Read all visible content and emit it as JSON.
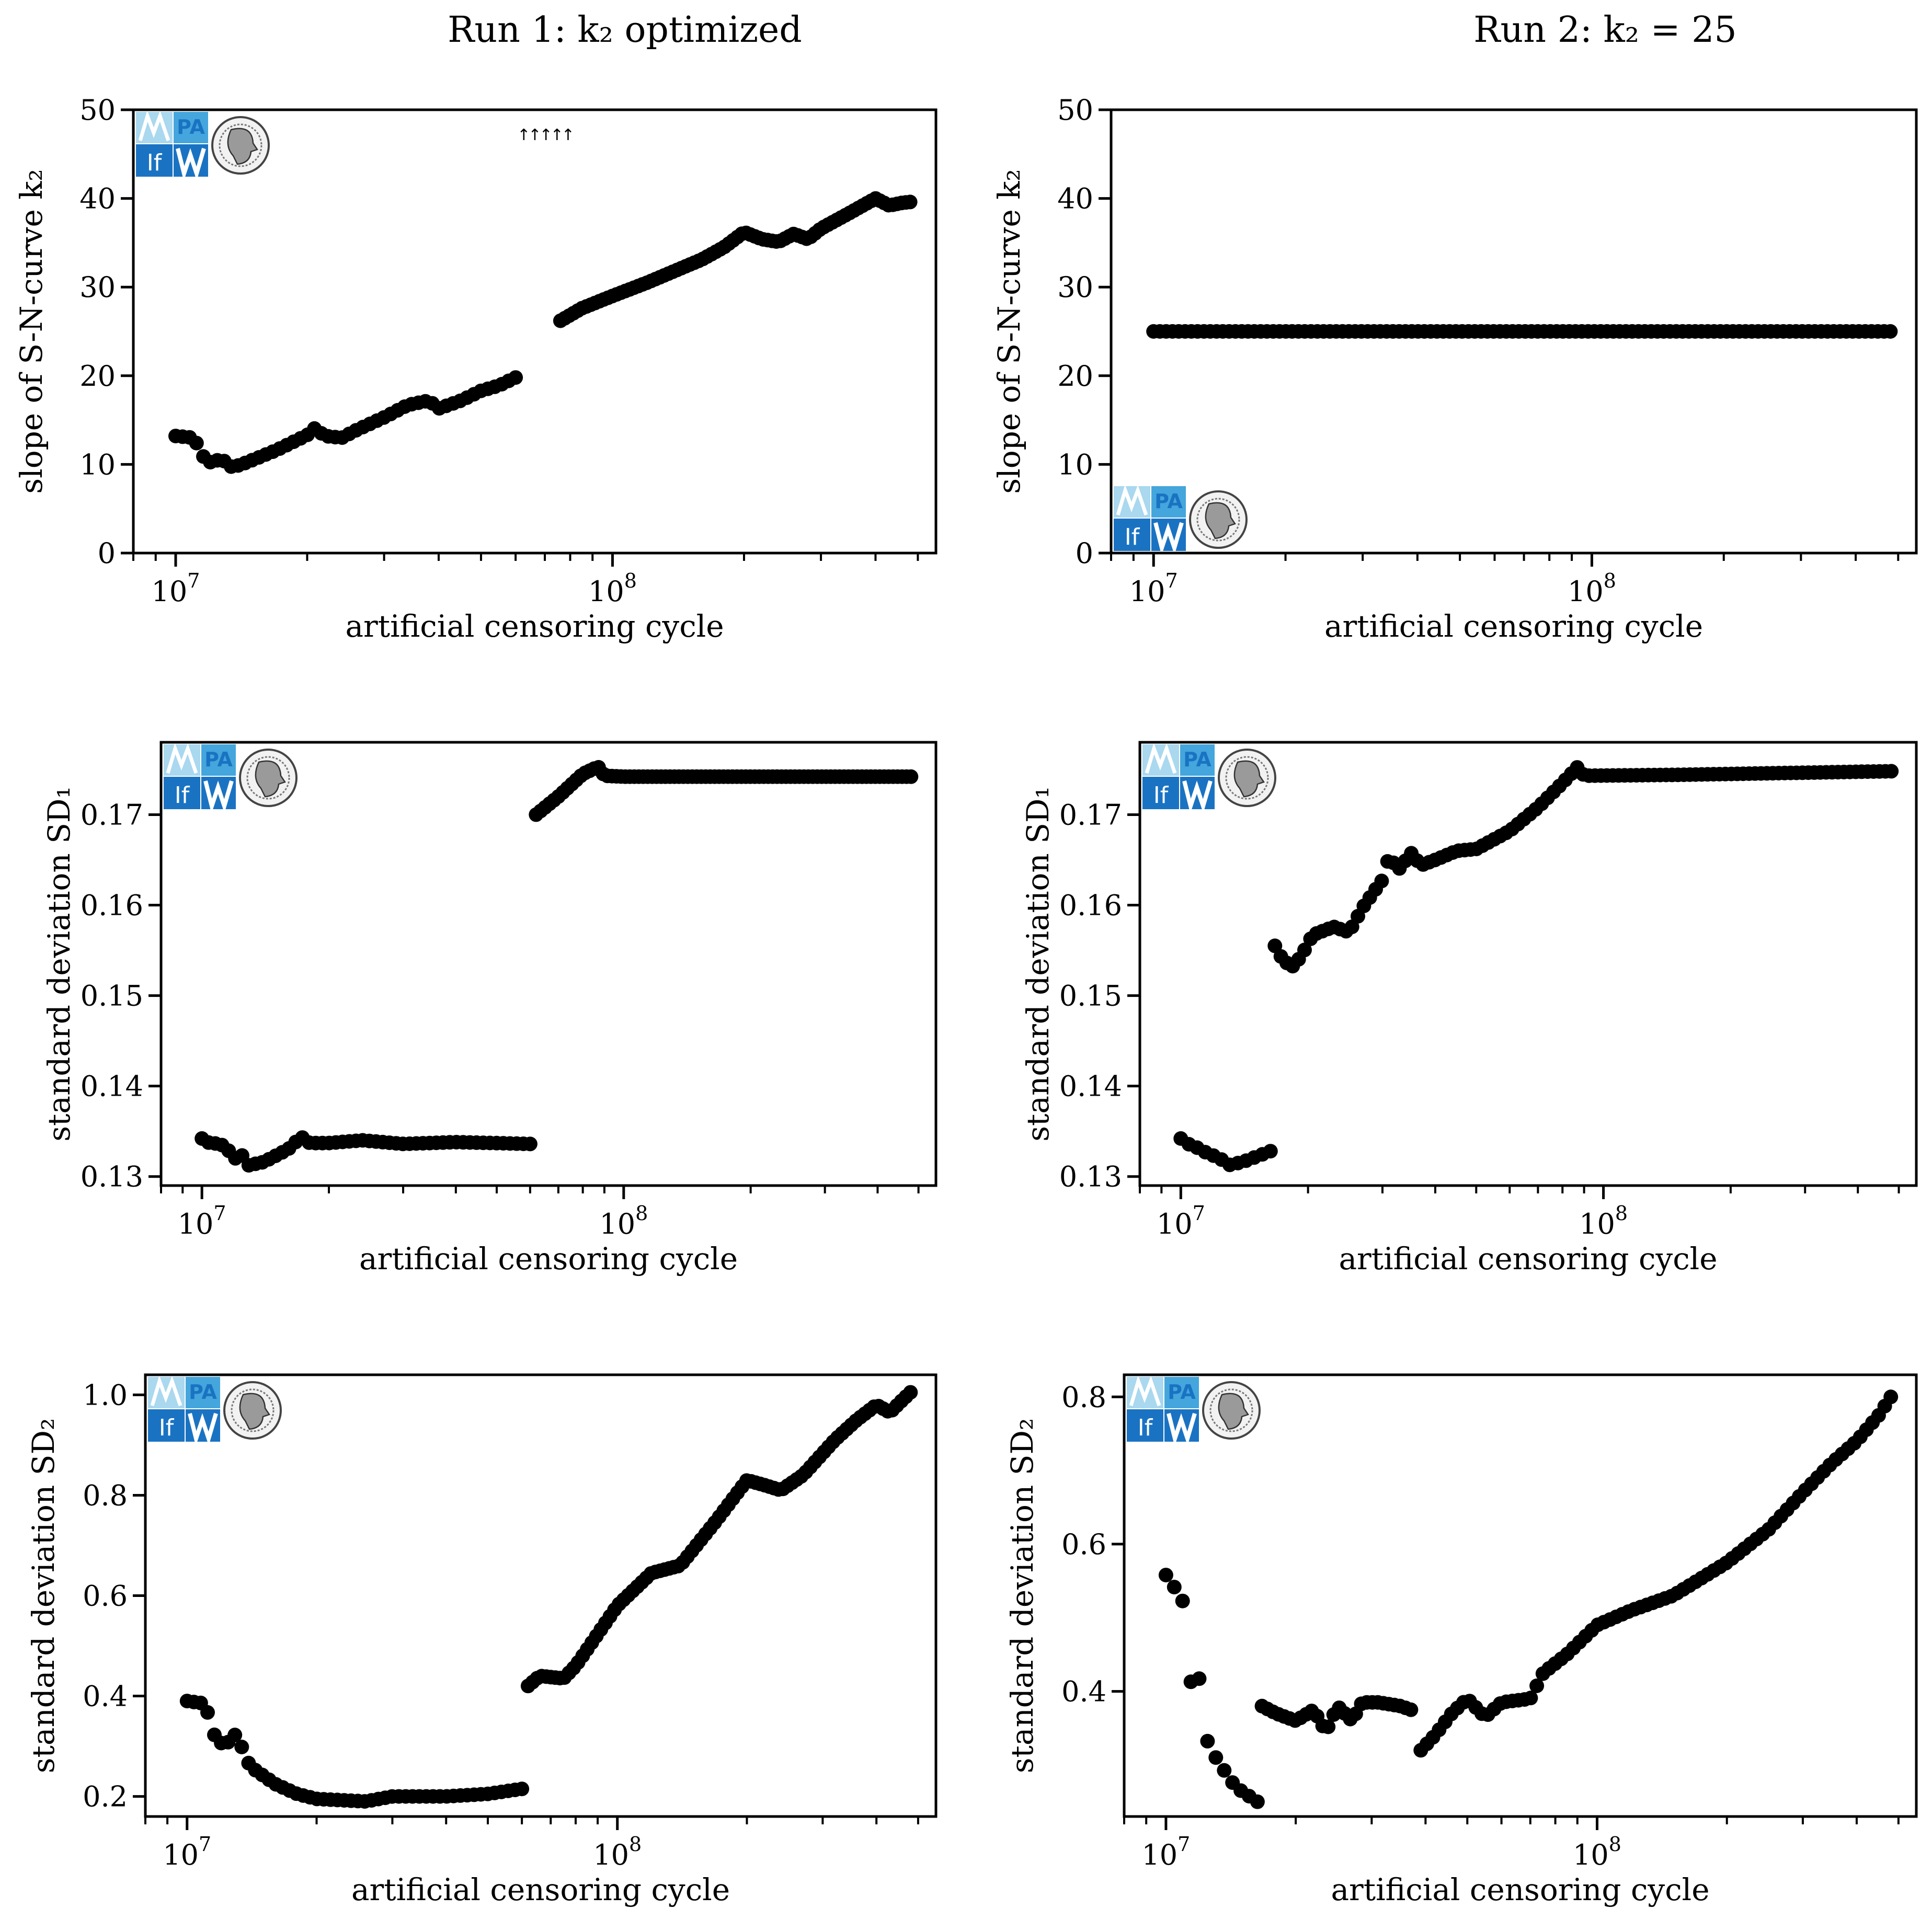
{
  "column_titles": [
    "Run 1: k₂ optimized",
    "Run 2: k₂ = 25"
  ],
  "logo": {
    "left_text": "If",
    "right_text": "PA",
    "emblem": "university-seal"
  },
  "colors": {
    "marker": "#000000",
    "axes": "#000000",
    "logo_light": "#a9d8ef",
    "logo_mid": "#44a6dc",
    "logo_dark": "#1a73c2"
  },
  "chart_data": [
    {
      "type": "scatter",
      "row": 0,
      "col": 0,
      "title": "Run 1: k₂ optimized",
      "xlabel": "artificial censoring cycle",
      "ylabel": "slope of S-N-curve k₂",
      "xscale": "log",
      "xlim": [
        8000000,
        550000000
      ],
      "ylim": [
        0,
        50
      ],
      "yticks": [
        0,
        10,
        20,
        30,
        40,
        50
      ],
      "yticklabels": [
        "0",
        "10",
        "20",
        "30",
        "40",
        "50"
      ],
      "xticks": [
        10000000,
        100000000
      ],
      "xticklabels": [
        "10^7",
        "10^8"
      ],
      "annotations": [
        "↑↑↑↑↑"
      ],
      "logo_position": "top-left",
      "segments": [
        {
          "x_start": 10000000,
          "x_end": 60000000,
          "n": 50,
          "knots": [
            [
              10000000.0,
              13.2
            ],
            [
              10500000.0,
              13.1
            ],
            [
              11000000.0,
              13.0
            ],
            [
              11600000.0,
              10.8
            ],
            [
              12200000.0,
              10.0
            ],
            [
              12700000.0,
              10.9
            ],
            [
              13200000.0,
              9.7
            ],
            [
              14000000.0,
              9.9
            ],
            [
              15000000.0,
              10.5
            ],
            [
              17000000.0,
              11.6
            ],
            [
              20000000.0,
              13.3
            ],
            [
              20700000.0,
              14.1
            ],
            [
              22000000.0,
              13.2
            ],
            [
              24000000.0,
              13.0
            ],
            [
              26000000.0,
              13.9
            ],
            [
              30000000.0,
              15.3
            ],
            [
              34000000.0,
              16.7
            ],
            [
              38000000.0,
              17.2
            ],
            [
              40000000.0,
              16.3
            ],
            [
              45000000.0,
              17.2
            ],
            [
              50000000.0,
              18.3
            ],
            [
              55000000.0,
              18.9
            ],
            [
              60000000.0,
              19.8
            ]
          ]
        },
        {
          "x_start": 76000000,
          "x_end": 480000000,
          "n": 82,
          "knots": [
            [
              76000000.0,
              26.2
            ],
            [
              85000000.0,
              27.6
            ],
            [
              100000000.0,
              29.0
            ],
            [
              120000000.0,
              30.5
            ],
            [
              140000000.0,
              31.9
            ],
            [
              160000000.0,
              33.1
            ],
            [
              180000000.0,
              34.5
            ],
            [
              200000000.0,
              36.2
            ],
            [
              220000000.0,
              35.4
            ],
            [
              240000000.0,
              35.1
            ],
            [
              260000000.0,
              36.0
            ],
            [
              280000000.0,
              35.4
            ],
            [
              300000000.0,
              36.6
            ],
            [
              350000000.0,
              38.4
            ],
            [
              400000000.0,
              40.0
            ],
            [
              430000000.0,
              39.2
            ],
            [
              460000000.0,
              39.5
            ],
            [
              480000000.0,
              39.6
            ]
          ]
        }
      ]
    },
    {
      "type": "scatter",
      "row": 0,
      "col": 1,
      "title": "Run 2: k₂ = 25",
      "xlabel": "artificial censoring cycle",
      "ylabel": "slope of S-N-curve k₂",
      "xscale": "log",
      "xlim": [
        8000000,
        550000000
      ],
      "ylim": [
        0,
        50
      ],
      "yticks": [
        0,
        10,
        20,
        30,
        40,
        50
      ],
      "yticklabels": [
        "0",
        "10",
        "20",
        "30",
        "40",
        "50"
      ],
      "xticks": [
        10000000,
        100000000
      ],
      "xticklabels": [
        "10^7",
        "10^8"
      ],
      "logo_position": "bottom-left",
      "segments": [
        {
          "x_start": 10000000,
          "x_end": 480000000,
          "n": 118,
          "knots": [
            [
              10000000.0,
              25.0
            ],
            [
              480000000.0,
              25.0
            ]
          ]
        }
      ]
    },
    {
      "type": "scatter",
      "row": 1,
      "col": 0,
      "xlabel": "artificial censoring cycle",
      "ylabel": "standard deviation SD₁",
      "xscale": "log",
      "xlim": [
        8000000,
        550000000
      ],
      "ylim": [
        0.129,
        0.178
      ],
      "yticks": [
        0.13,
        0.14,
        0.15,
        0.16,
        0.17
      ],
      "yticklabels": [
        "0.13",
        "0.14",
        "0.15",
        "0.16",
        "0.17"
      ],
      "xticks": [
        10000000,
        100000000
      ],
      "xticklabels": [
        "10^7",
        "10^8"
      ],
      "logo_position": "top-left",
      "segments": [
        {
          "x_start": 10000000,
          "x_end": 60000000,
          "n": 50,
          "knots": [
            [
              10000000.0,
              0.1342
            ],
            [
              10500000.0,
              0.1336
            ],
            [
              11000000.0,
              0.1337
            ],
            [
              11500000.0,
              0.133
            ],
            [
              12000000.0,
              0.132
            ],
            [
              12400000.0,
              0.1325
            ],
            [
              12800000.0,
              0.1312
            ],
            [
              14000000.0,
              0.1316
            ],
            [
              16000000.0,
              0.133
            ],
            [
              17200000.0,
              0.1344
            ],
            [
              18000000.0,
              0.1337
            ],
            [
              20000000.0,
              0.1337
            ],
            [
              24000000.0,
              0.134
            ],
            [
              30000000.0,
              0.1336
            ],
            [
              40000000.0,
              0.1338
            ],
            [
              60000000.0,
              0.1336
            ]
          ]
        },
        {
          "x_start": 62000000,
          "x_end": 480000000,
          "n": 85,
          "knots": [
            [
              62000000.0,
              0.17
            ],
            [
              70000000.0,
              0.172
            ],
            [
              80000000.0,
              0.1745
            ],
            [
              87000000.0,
              0.1753
            ],
            [
              90000000.0,
              0.1743
            ],
            [
              100000000.0,
              0.1742
            ],
            [
              480000000.0,
              0.1742
            ]
          ]
        }
      ]
    },
    {
      "type": "scatter",
      "row": 1,
      "col": 1,
      "xlabel": "artificial censoring cycle",
      "ylabel": "standard deviation SD₁",
      "xscale": "log",
      "xlim": [
        8000000,
        550000000
      ],
      "ylim": [
        0.129,
        0.178
      ],
      "yticks": [
        0.13,
        0.14,
        0.15,
        0.16,
        0.17
      ],
      "yticklabels": [
        "0.13",
        "0.14",
        "0.15",
        "0.16",
        "0.17"
      ],
      "xticks": [
        10000000,
        100000000
      ],
      "xticklabels": [
        "10^7",
        "10^8"
      ],
      "logo_position": "top-left",
      "segments": [
        {
          "x_start": 10000000,
          "x_end": 16300000,
          "n": 12,
          "knots": [
            [
              10000000.0,
              0.1342
            ],
            [
              10500000.0,
              0.1335
            ],
            [
              11200000.0,
              0.133
            ],
            [
              11800000.0,
              0.1322
            ],
            [
              12200000.0,
              0.1325
            ],
            [
              12800000.0,
              0.1312
            ],
            [
              14000000.0,
              0.1316
            ],
            [
              16300000.0,
              0.1328
            ]
          ]
        },
        {
          "x_start": 16700000,
          "x_end": 480000000,
          "n": 105,
          "knots": [
            [
              16700000.0,
              0.1555
            ],
            [
              17500000.0,
              0.1538
            ],
            [
              18500000.0,
              0.1532
            ],
            [
              19500000.0,
              0.1548
            ],
            [
              20500000.0,
              0.1567
            ],
            [
              23000000.0,
              0.1576
            ],
            [
              25000000.0,
              0.157
            ],
            [
              27000000.0,
              0.1598
            ],
            [
              30000000.0,
              0.1628
            ],
            [
              31000000.0,
              0.1652
            ],
            [
              33000000.0,
              0.164
            ],
            [
              35000000.0,
              0.1658
            ],
            [
              37000000.0,
              0.1644
            ],
            [
              40000000.0,
              0.165
            ],
            [
              45000000.0,
              0.166
            ],
            [
              50000000.0,
              0.1662
            ],
            [
              60000000.0,
              0.1682
            ],
            [
              70000000.0,
              0.1708
            ],
            [
              80000000.0,
              0.1735
            ],
            [
              87000000.0,
              0.1753
            ],
            [
              90000000.0,
              0.1743
            ],
            [
              150000000.0,
              0.1744
            ],
            [
              480000000.0,
              0.1748
            ]
          ]
        }
      ]
    },
    {
      "type": "scatter",
      "row": 2,
      "col": 0,
      "xlabel": "artificial censoring cycle",
      "ylabel": "standard deviation SD₂",
      "xscale": "log",
      "xlim": [
        8000000,
        550000000
      ],
      "ylim": [
        0.16,
        1.04
      ],
      "yticks": [
        0.2,
        0.4,
        0.6,
        0.8,
        1.0
      ],
      "yticklabels": [
        "0.2",
        "0.4",
        "0.6",
        "0.8",
        "1.0"
      ],
      "xticks": [
        10000000,
        100000000
      ],
      "xticklabels": [
        "10^7",
        "10^8"
      ],
      "logo_position": "top-left",
      "segments": [
        {
          "x_start": 10000000,
          "x_end": 60000000,
          "n": 50,
          "knots": [
            [
              10000000.0,
              0.39
            ],
            [
              11000000.0,
              0.385
            ],
            [
              11600000.0,
              0.32
            ],
            [
              12200000.0,
              0.3
            ],
            [
              13000000.0,
              0.325
            ],
            [
              14000000.0,
              0.26
            ],
            [
              16000000.0,
              0.225
            ],
            [
              18000000.0,
              0.205
            ],
            [
              20000000.0,
              0.195
            ],
            [
              26000000.0,
              0.19
            ],
            [
              30000000.0,
              0.2
            ],
            [
              40000000.0,
              0.2
            ],
            [
              50000000.0,
              0.205
            ],
            [
              60000000.0,
              0.215
            ]
          ]
        },
        {
          "x_start": 62000000,
          "x_end": 480000000,
          "n": 85,
          "knots": [
            [
              62000000.0,
              0.42
            ],
            [
              66000000.0,
              0.44
            ],
            [
              75000000.0,
              0.435
            ],
            [
              80000000.0,
              0.46
            ],
            [
              100000000.0,
              0.58
            ],
            [
              120000000.0,
              0.645
            ],
            [
              140000000.0,
              0.66
            ],
            [
              170000000.0,
              0.75
            ],
            [
              200000000.0,
              0.83
            ],
            [
              220000000.0,
              0.82
            ],
            [
              240000000.0,
              0.81
            ],
            [
              270000000.0,
              0.84
            ],
            [
              320000000.0,
              0.91
            ],
            [
              360000000.0,
              0.95
            ],
            [
              400000000.0,
              0.98
            ],
            [
              430000000.0,
              0.965
            ],
            [
              460000000.0,
              0.99
            ],
            [
              480000000.0,
              1.005
            ]
          ]
        }
      ]
    },
    {
      "type": "scatter",
      "row": 2,
      "col": 1,
      "xlabel": "artificial censoring cycle",
      "ylabel": "standard deviation SD₂",
      "xscale": "log",
      "xlim": [
        8000000,
        550000000
      ],
      "ylim": [
        0.23,
        0.83
      ],
      "yticks": [
        0.4,
        0.6,
        0.8
      ],
      "yticklabels": [
        "0.4",
        "0.6",
        "0.8"
      ],
      "xticks": [
        10000000,
        100000000
      ],
      "xticklabels": [
        "10^7",
        "10^8"
      ],
      "logo_position": "top-left",
      "segments": [
        {
          "x_start": 10000000,
          "x_end": 16300000,
          "n": 12,
          "knots": [
            [
              10000000.0,
              0.558
            ],
            [
              10500000.0,
              0.54
            ],
            [
              11000000.0,
              0.52
            ],
            [
              11200000.0,
              0.43
            ],
            [
              11600000.0,
              0.4
            ],
            [
              12000000.0,
              0.42
            ],
            [
              12500000.0,
              0.33
            ],
            [
              13200000.0,
              0.305
            ],
            [
              14500000.0,
              0.27
            ],
            [
              16300000.0,
              0.25
            ]
          ]
        },
        {
          "x_start": 16700000,
          "x_end": 37000000,
          "n": 28,
          "knots": [
            [
              16700000.0,
              0.38
            ],
            [
              18000000.0,
              0.37
            ],
            [
              20000000.0,
              0.36
            ],
            [
              22000000.0,
              0.375
            ],
            [
              23500000.0,
              0.345
            ],
            [
              25000000.0,
              0.38
            ],
            [
              27000000.0,
              0.36
            ],
            [
              28500000.0,
              0.385
            ],
            [
              31000000.0,
              0.385
            ],
            [
              35000000.0,
              0.38
            ],
            [
              37000000.0,
              0.375
            ]
          ]
        },
        {
          "x_start": 39000000,
          "x_end": 480000000,
          "n": 78,
          "knots": [
            [
              39000000.0,
              0.32
            ],
            [
              42000000.0,
              0.34
            ],
            [
              46000000.0,
              0.37
            ],
            [
              50000000.0,
              0.39
            ],
            [
              55000000.0,
              0.365
            ],
            [
              60000000.0,
              0.385
            ],
            [
              70000000.0,
              0.39
            ],
            [
              75000000.0,
              0.425
            ],
            [
              85000000.0,
              0.45
            ],
            [
              100000000.0,
              0.49
            ],
            [
              120000000.0,
              0.51
            ],
            [
              150000000.0,
              0.53
            ],
            [
              200000000.0,
              0.575
            ],
            [
              250000000.0,
              0.62
            ],
            [
              300000000.0,
              0.67
            ],
            [
              350000000.0,
              0.71
            ],
            [
              400000000.0,
              0.74
            ],
            [
              450000000.0,
              0.775
            ],
            [
              480000000.0,
              0.8
            ]
          ]
        }
      ]
    }
  ]
}
